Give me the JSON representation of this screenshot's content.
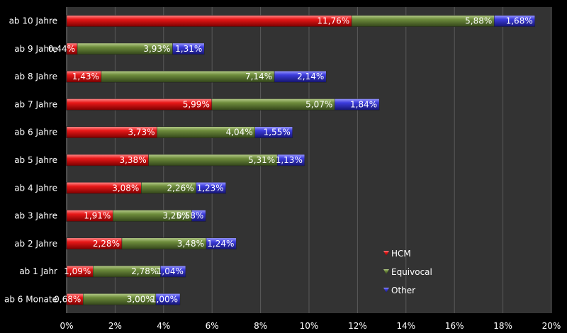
{
  "chart_data": {
    "type": "bar",
    "orientation": "horizontal",
    "stacked": true,
    "categories": [
      "ab 10 Jahre",
      "ab 9 Jahre",
      "ab 8 Jahre",
      "ab 7 Jahre",
      "ab 6 Jahre",
      "ab 5 Jahre",
      "ab 4 Jahre",
      "ab 3 Jahre",
      "ab 2 Jahre",
      "ab 1 Jahr",
      "ab 6 Monate"
    ],
    "series": [
      {
        "name": "HCM",
        "color": "#e01010",
        "values": [
          11.76,
          0.44,
          1.43,
          5.99,
          3.73,
          3.38,
          3.08,
          1.91,
          2.28,
          1.09,
          0.68
        ],
        "labels": [
          "11,76%",
          "0,44%",
          "1,43%",
          "5,99%",
          "3,73%",
          "3,38%",
          "3,08%",
          "1,91%",
          "2,28%",
          "1,09%",
          "0,68%"
        ]
      },
      {
        "name": "Equivocal",
        "color": "#6b8a3a",
        "values": [
          5.88,
          3.93,
          7.14,
          5.07,
          4.04,
          5.31,
          2.26,
          3.25,
          3.48,
          2.78,
          3.0
        ],
        "labels": [
          "5,88%",
          "3,93%",
          "7,14%",
          "5,07%",
          "4,04%",
          "5,31%",
          "2,26%",
          "3,25%",
          "3,48%",
          "2,78%",
          "3,00%"
        ]
      },
      {
        "name": "Other",
        "color": "#3a3ad8",
        "values": [
          1.68,
          1.31,
          2.14,
          1.84,
          1.55,
          1.13,
          1.23,
          0.58,
          1.24,
          1.04,
          1.0
        ],
        "labels": [
          "1,68%",
          "1,31%",
          "2,14%",
          "1,84%",
          "1,55%",
          "1,13%",
          "1,23%",
          "0,58%",
          "1,24%",
          "1,04%",
          "1,00%"
        ]
      }
    ],
    "xlim": [
      0,
      20
    ],
    "xticks": [
      "0%",
      "2%",
      "4%",
      "6%",
      "8%",
      "10%",
      "12%",
      "14%",
      "16%",
      "18%",
      "20%"
    ],
    "grid": true,
    "legend_position": "bottom-right inside",
    "plot_background": "#333333",
    "gridline_color": "#555555"
  }
}
